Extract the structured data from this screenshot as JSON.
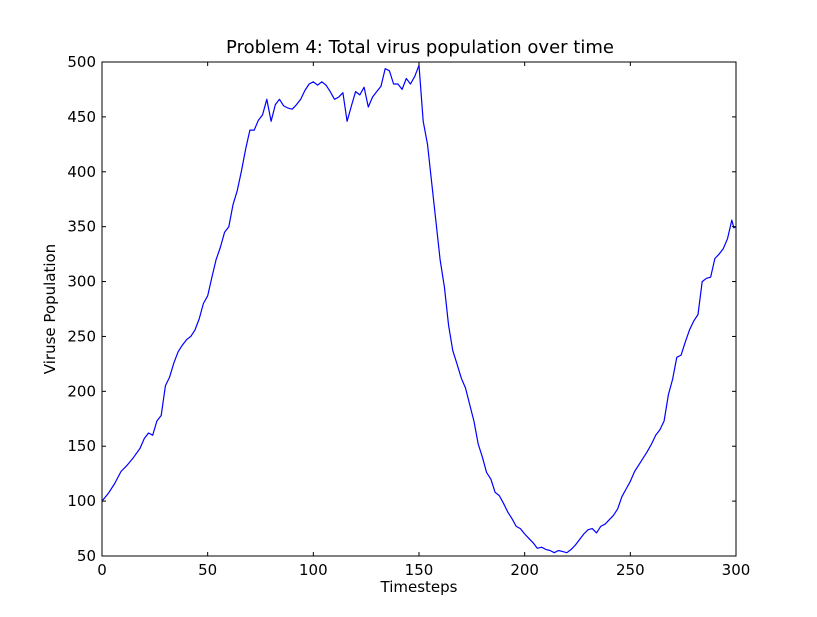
{
  "chart_data": {
    "type": "line",
    "title": "Problem 4: Total virus population over time",
    "xlabel": "Timesteps",
    "ylabel": "Viruse Population",
    "xlim": [
      0,
      300
    ],
    "ylim": [
      50,
      500
    ],
    "xticks": [
      0,
      50,
      100,
      150,
      200,
      250,
      300
    ],
    "yticks": [
      50,
      100,
      150,
      200,
      250,
      300,
      350,
      400,
      450,
      500
    ],
    "grid": false,
    "legend": "none",
    "series": [
      {
        "color": "#0000ff",
        "points": [
          [
            0,
            100
          ],
          [
            3,
            107
          ],
          [
            6,
            116
          ],
          [
            9,
            127
          ],
          [
            12,
            133
          ],
          [
            15,
            140
          ],
          [
            18,
            148
          ],
          [
            20,
            157
          ],
          [
            22,
            162
          ],
          [
            24,
            160
          ],
          [
            26,
            173
          ],
          [
            28,
            178
          ],
          [
            30,
            205
          ],
          [
            32,
            213
          ],
          [
            34,
            226
          ],
          [
            36,
            236
          ],
          [
            38,
            242
          ],
          [
            40,
            247
          ],
          [
            42,
            250
          ],
          [
            44,
            256
          ],
          [
            46,
            266
          ],
          [
            48,
            280
          ],
          [
            50,
            287
          ],
          [
            52,
            304
          ],
          [
            54,
            320
          ],
          [
            56,
            331
          ],
          [
            58,
            345
          ],
          [
            60,
            350
          ],
          [
            62,
            370
          ],
          [
            64,
            383
          ],
          [
            66,
            401
          ],
          [
            68,
            421
          ],
          [
            70,
            438
          ],
          [
            72,
            438
          ],
          [
            74,
            447
          ],
          [
            76,
            452
          ],
          [
            78,
            466
          ],
          [
            80,
            446
          ],
          [
            82,
            461
          ],
          [
            84,
            466
          ],
          [
            86,
            460
          ],
          [
            88,
            458
          ],
          [
            90,
            457
          ],
          [
            92,
            461
          ],
          [
            94,
            466
          ],
          [
            96,
            474
          ],
          [
            98,
            480
          ],
          [
            100,
            482
          ],
          [
            102,
            479
          ],
          [
            104,
            482
          ],
          [
            106,
            479
          ],
          [
            108,
            473
          ],
          [
            110,
            466
          ],
          [
            112,
            468
          ],
          [
            114,
            472
          ],
          [
            116,
            446
          ],
          [
            118,
            460
          ],
          [
            120,
            473
          ],
          [
            122,
            470
          ],
          [
            124,
            477
          ],
          [
            126,
            459
          ],
          [
            128,
            468
          ],
          [
            130,
            473
          ],
          [
            132,
            478
          ],
          [
            134,
            494
          ],
          [
            136,
            492
          ],
          [
            138,
            480
          ],
          [
            140,
            480
          ],
          [
            142,
            475
          ],
          [
            144,
            485
          ],
          [
            146,
            480
          ],
          [
            148,
            487
          ],
          [
            150,
            497
          ],
          [
            152,
            446
          ],
          [
            154,
            425
          ],
          [
            156,
            390
          ],
          [
            158,
            355
          ],
          [
            160,
            320
          ],
          [
            162,
            295
          ],
          [
            164,
            260
          ],
          [
            166,
            237
          ],
          [
            168,
            225
          ],
          [
            170,
            212
          ],
          [
            172,
            203
          ],
          [
            174,
            188
          ],
          [
            176,
            173
          ],
          [
            178,
            152
          ],
          [
            180,
            140
          ],
          [
            182,
            126
          ],
          [
            184,
            120
          ],
          [
            186,
            108
          ],
          [
            188,
            105
          ],
          [
            190,
            98
          ],
          [
            192,
            90
          ],
          [
            194,
            84
          ],
          [
            196,
            77
          ],
          [
            198,
            75
          ],
          [
            200,
            70
          ],
          [
            202,
            66
          ],
          [
            204,
            62
          ],
          [
            206,
            57
          ],
          [
            208,
            58
          ],
          [
            210,
            56
          ],
          [
            212,
            55
          ],
          [
            214,
            53
          ],
          [
            216,
            55
          ],
          [
            218,
            54
          ],
          [
            220,
            53
          ],
          [
            222,
            56
          ],
          [
            224,
            60
          ],
          [
            226,
            65
          ],
          [
            228,
            70
          ],
          [
            230,
            74
          ],
          [
            232,
            75
          ],
          [
            234,
            71
          ],
          [
            236,
            77
          ],
          [
            238,
            79
          ],
          [
            240,
            83
          ],
          [
            242,
            87
          ],
          [
            244,
            93
          ],
          [
            246,
            104
          ],
          [
            248,
            111
          ],
          [
            250,
            118
          ],
          [
            252,
            127
          ],
          [
            254,
            133
          ],
          [
            256,
            139
          ],
          [
            258,
            145
          ],
          [
            260,
            152
          ],
          [
            262,
            160
          ],
          [
            264,
            165
          ],
          [
            266,
            173
          ],
          [
            268,
            197
          ],
          [
            270,
            211
          ],
          [
            272,
            231
          ],
          [
            274,
            233
          ],
          [
            276,
            245
          ],
          [
            278,
            256
          ],
          [
            280,
            264
          ],
          [
            282,
            270
          ],
          [
            284,
            300
          ],
          [
            286,
            303
          ],
          [
            288,
            304
          ],
          [
            290,
            321
          ],
          [
            292,
            325
          ],
          [
            294,
            330
          ],
          [
            296,
            339
          ],
          [
            298,
            356
          ],
          [
            299,
            349
          ],
          [
            300,
            350
          ]
        ]
      }
    ]
  }
}
